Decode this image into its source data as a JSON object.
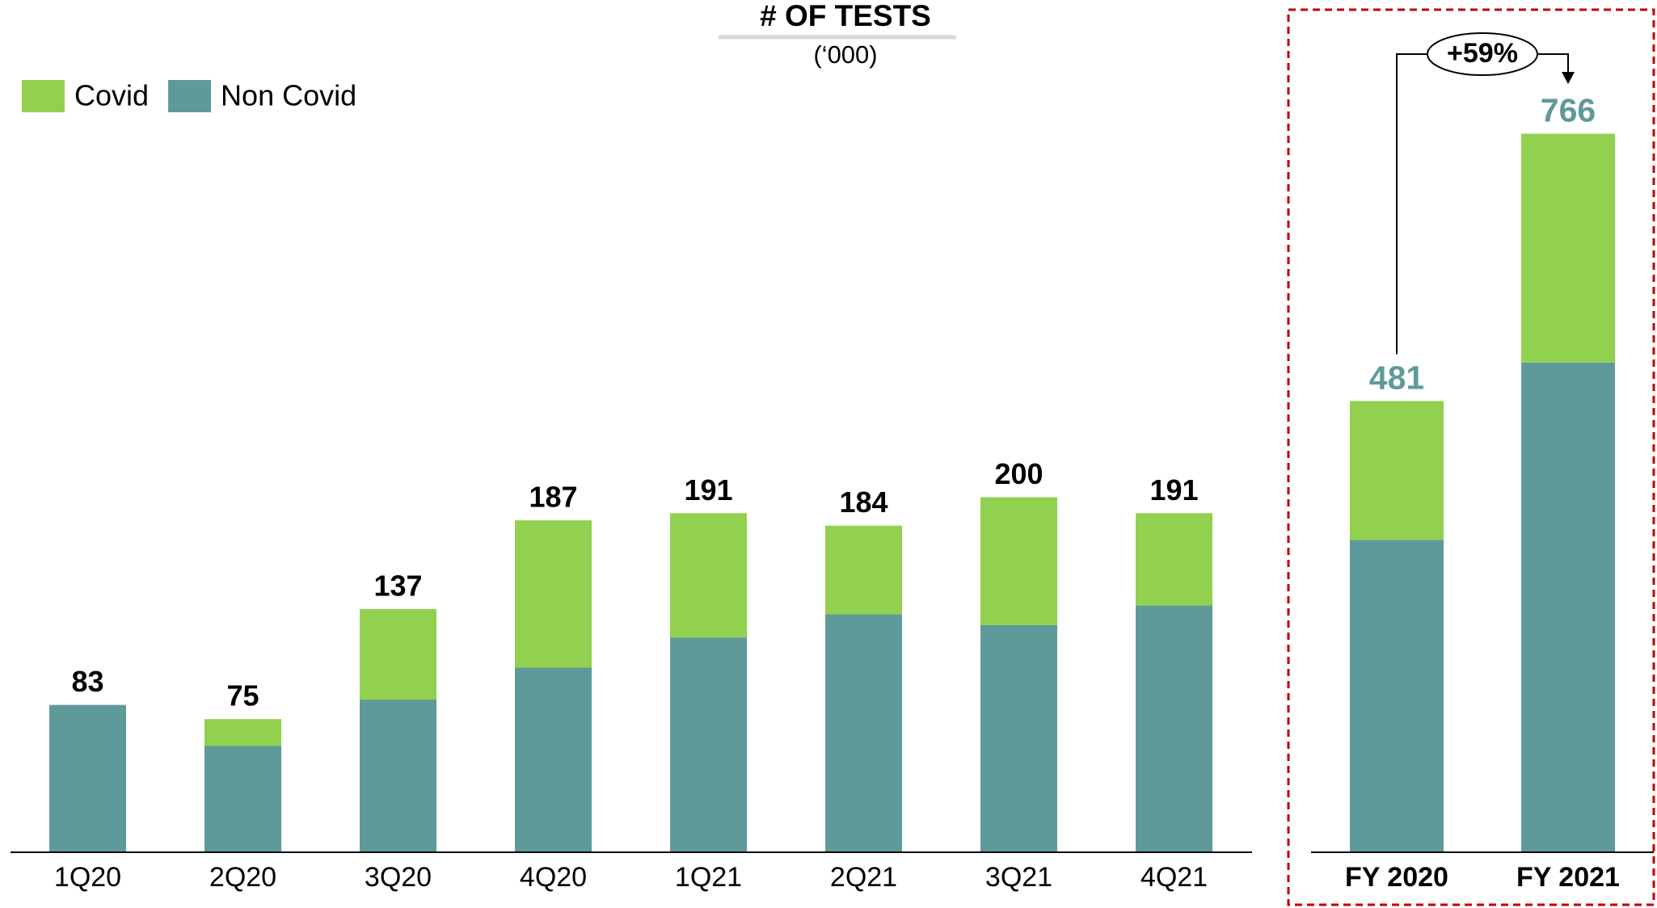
{
  "chart_data": [
    {
      "type": "stacked_bar",
      "title": "# OF TESTS",
      "subtitle": "(‘000)",
      "categories": [
        "1Q20",
        "2Q20",
        "3Q20",
        "4Q20",
        "1Q21",
        "2Q21",
        "3Q21",
        "4Q21"
      ],
      "series": [
        {
          "name": "Covid",
          "color": "#92d050",
          "values": [
            0,
            15,
            51,
            83,
            70,
            50,
            72,
            52
          ]
        },
        {
          "name": "Non Covid",
          "color": "#5f9a9a",
          "values": [
            83,
            60,
            86,
            104,
            121,
            134,
            128,
            139
          ]
        }
      ],
      "totals": [
        83,
        75,
        137,
        187,
        191,
        184,
        200,
        191
      ],
      "ylim": [
        0,
        400
      ]
    },
    {
      "type": "stacked_bar",
      "categories": [
        "FY 2020",
        "FY 2021"
      ],
      "series": [
        {
          "color": "#92d050",
          "values": [
            148,
            244
          ]
        },
        {
          "color": "#5f9a9a",
          "values": [
            333,
            522
          ]
        }
      ],
      "totals": [
        481,
        766
      ],
      "annotation": "+59%",
      "ylim": [
        0,
        800
      ]
    }
  ]
}
